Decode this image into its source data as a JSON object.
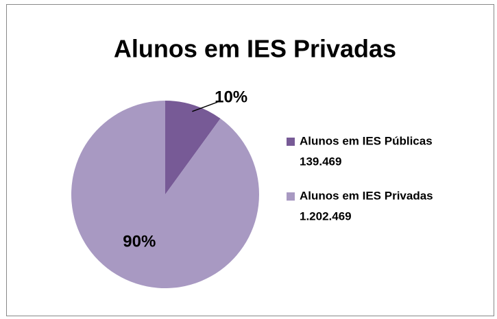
{
  "chart_data": {
    "type": "pie",
    "title": "Alunos em IES Privadas",
    "categories": [
      "Alunos em IES Públicas",
      "Alunos em IES Privadas"
    ],
    "category_counts": [
      "139.469",
      "1.202.469"
    ],
    "values": [
      10,
      90
    ],
    "value_labels": [
      "10%",
      "90%"
    ],
    "colors": [
      "#775a96",
      "#a899c2"
    ],
    "legend": "right"
  }
}
